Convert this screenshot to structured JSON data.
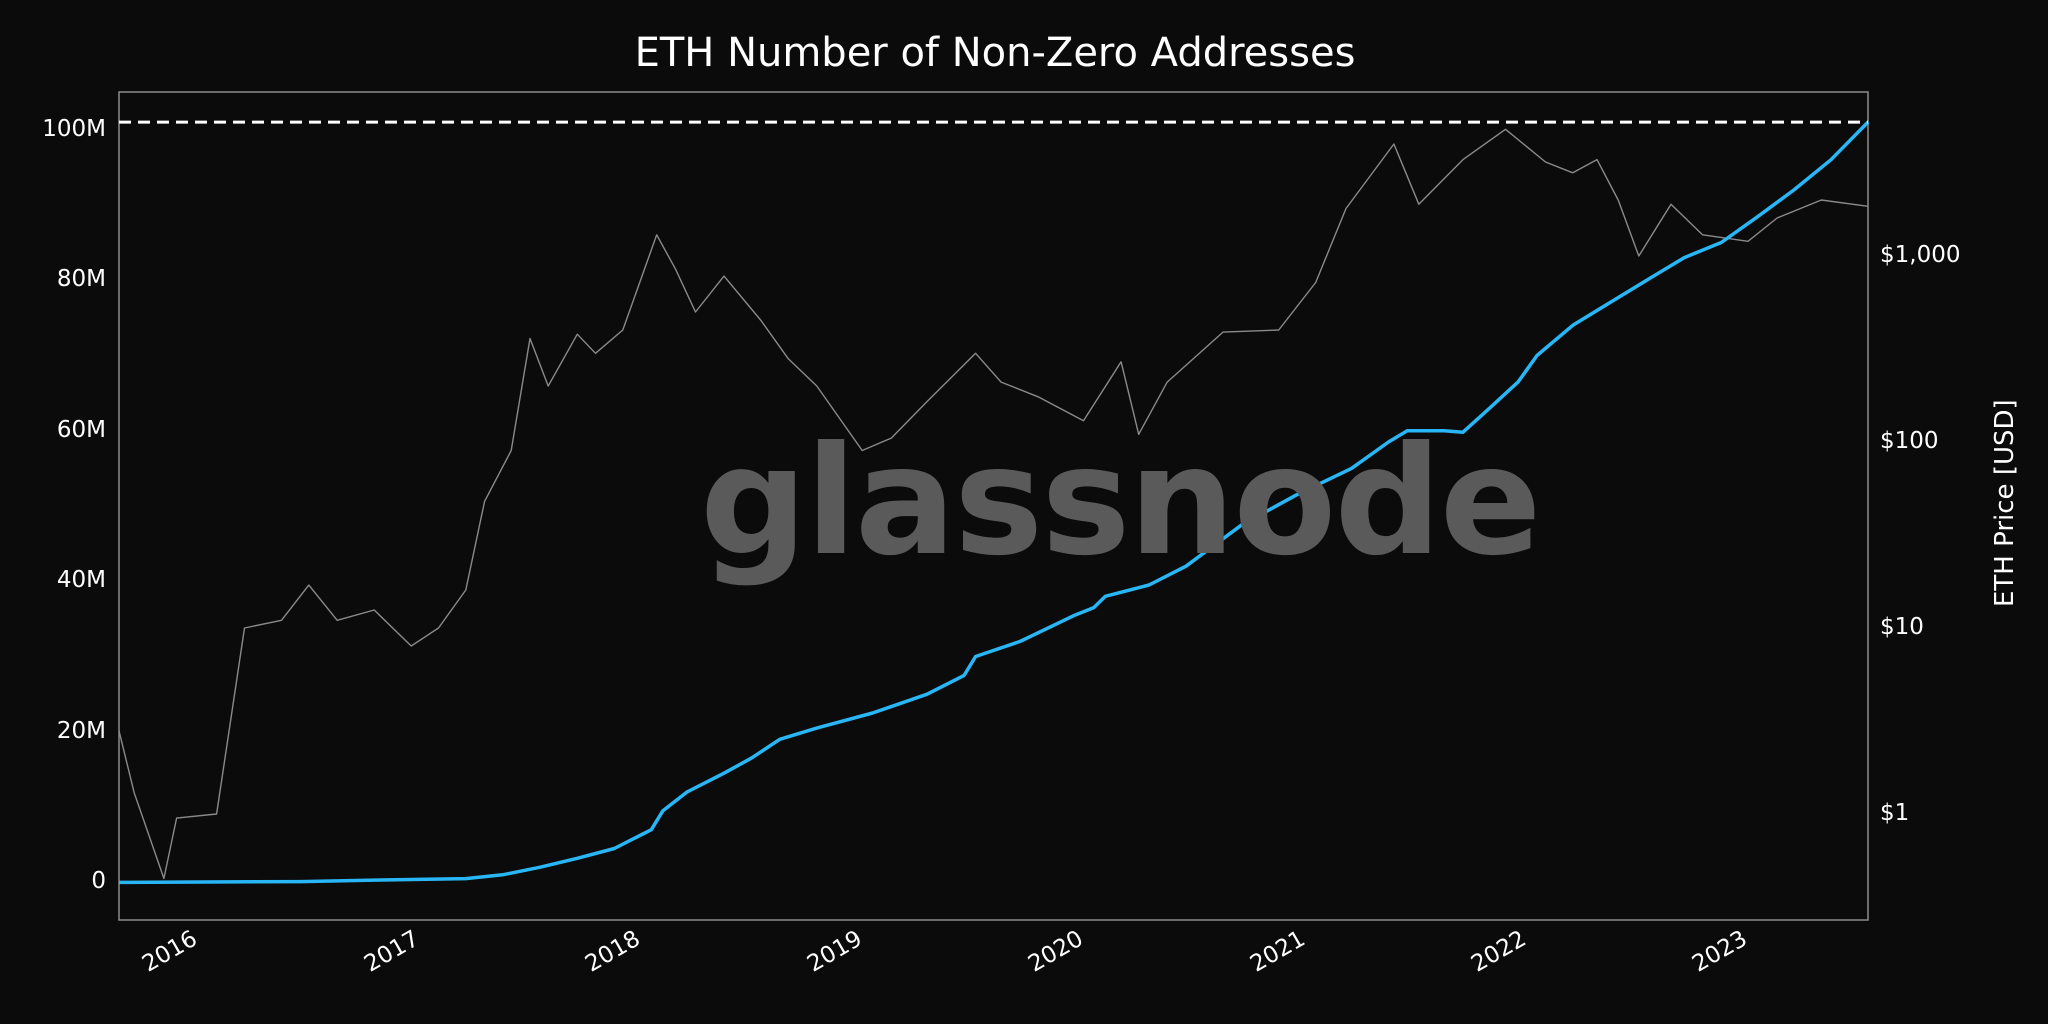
{
  "chart_data": {
    "type": "line",
    "title": "ETH Number of Non-Zero Addresses",
    "watermark": "glassnode",
    "x_tick_labels": [
      "2016",
      "2017",
      "2018",
      "2019",
      "2020",
      "2021",
      "2022",
      "2023"
    ],
    "y_left": {
      "ylim": [
        -5000000,
        105000000
      ],
      "tick_values": [
        0,
        20000000,
        40000000,
        60000000,
        80000000,
        100000000
      ],
      "tick_labels": [
        "0",
        "20M",
        "40M",
        "60M",
        "80M",
        "100M"
      ]
    },
    "y_right": {
      "ylabel": "ETH Price [USD]",
      "scale": "log",
      "tick_values": [
        1,
        10,
        100,
        1000
      ],
      "tick_labels": [
        "$1",
        "$10",
        "$100",
        "$1,000"
      ]
    },
    "xlim": [
      "2015-08-07",
      "2023-07-01"
    ],
    "ath_line": 101000000,
    "series": [
      {
        "color": "#29b6f6",
        "axis": "left",
        "points": [
          [
            "2015-08-07",
            0
          ],
          [
            "2016-06-01",
            100000
          ],
          [
            "2016-10-01",
            300000
          ],
          [
            "2017-03-01",
            500000
          ],
          [
            "2017-05-01",
            1000000
          ],
          [
            "2017-07-01",
            2000000
          ],
          [
            "2017-09-01",
            3200000
          ],
          [
            "2017-11-01",
            4500000
          ],
          [
            "2018-01-01",
            7000000
          ],
          [
            "2018-01-20",
            9500000
          ],
          [
            "2018-03-01",
            12000000
          ],
          [
            "2018-05-01",
            14500000
          ],
          [
            "2018-06-15",
            16500000
          ],
          [
            "2018-08-01",
            19000000
          ],
          [
            "2018-10-01",
            20500000
          ],
          [
            "2019-01-01",
            22500000
          ],
          [
            "2019-04-01",
            25000000
          ],
          [
            "2019-06-01",
            27500000
          ],
          [
            "2019-06-20",
            30000000
          ],
          [
            "2019-09-01",
            32000000
          ],
          [
            "2019-12-01",
            35500000
          ],
          [
            "2020-01-01",
            36500000
          ],
          [
            "2020-01-20",
            38000000
          ],
          [
            "2020-04-01",
            39500000
          ],
          [
            "2020-06-01",
            42000000
          ],
          [
            "2020-09-01",
            47500000
          ],
          [
            "2020-12-01",
            51500000
          ],
          [
            "2021-03-01",
            55000000
          ],
          [
            "2021-05-01",
            58500000
          ],
          [
            "2021-06-01",
            60000000
          ],
          [
            "2021-08-01",
            60000000
          ],
          [
            "2021-09-01",
            59800000
          ],
          [
            "2021-10-15",
            63000000
          ],
          [
            "2021-12-01",
            66500000
          ],
          [
            "2022-01-01",
            70000000
          ],
          [
            "2022-03-01",
            74000000
          ],
          [
            "2022-05-01",
            77000000
          ],
          [
            "2022-07-01",
            80000000
          ],
          [
            "2022-09-01",
            83000000
          ],
          [
            "2022-11-01",
            85000000
          ],
          [
            "2023-01-01",
            88500000
          ],
          [
            "2023-03-01",
            92000000
          ],
          [
            "2023-05-01",
            96000000
          ],
          [
            "2023-07-01",
            101000000
          ]
        ]
      },
      {
        "color": "#8a8a8a",
        "axis": "right",
        "points": [
          [
            "2015-08-07",
            2.8
          ],
          [
            "2015-09-01",
            1.3
          ],
          [
            "2015-10-20",
            0.45
          ],
          [
            "2015-11-10",
            0.95
          ],
          [
            "2016-01-15",
            1.0
          ],
          [
            "2016-03-01",
            10
          ],
          [
            "2016-05-01",
            11
          ],
          [
            "2016-06-15",
            17
          ],
          [
            "2016-08-01",
            11
          ],
          [
            "2016-10-01",
            12.5
          ],
          [
            "2016-12-01",
            8
          ],
          [
            "2017-01-15",
            10
          ],
          [
            "2017-03-01",
            16
          ],
          [
            "2017-04-01",
            48
          ],
          [
            "2017-05-15",
            90
          ],
          [
            "2017-06-15",
            360
          ],
          [
            "2017-07-15",
            200
          ],
          [
            "2017-09-01",
            380
          ],
          [
            "2017-10-01",
            300
          ],
          [
            "2017-11-15",
            400
          ],
          [
            "2018-01-10",
            1300
          ],
          [
            "2018-02-10",
            850
          ],
          [
            "2018-03-15",
            500
          ],
          [
            "2018-05-01",
            780
          ],
          [
            "2018-07-01",
            450
          ],
          [
            "2018-08-15",
            280
          ],
          [
            "2018-10-01",
            200
          ],
          [
            "2018-12-15",
            90
          ],
          [
            "2019-02-01",
            105
          ],
          [
            "2019-04-01",
            165
          ],
          [
            "2019-06-20",
            300
          ],
          [
            "2019-08-01",
            210
          ],
          [
            "2019-10-01",
            175
          ],
          [
            "2019-12-15",
            130
          ],
          [
            "2020-02-15",
            270
          ],
          [
            "2020-03-15",
            110
          ],
          [
            "2020-05-01",
            210
          ],
          [
            "2020-08-01",
            390
          ],
          [
            "2020-11-01",
            400
          ],
          [
            "2021-01-01",
            720
          ],
          [
            "2021-02-20",
            1800
          ],
          [
            "2021-05-10",
            4000
          ],
          [
            "2021-06-20",
            1900
          ],
          [
            "2021-09-01",
            3300
          ],
          [
            "2021-11-10",
            4800
          ],
          [
            "2022-01-15",
            3200
          ],
          [
            "2022-03-01",
            2800
          ],
          [
            "2022-04-10",
            3300
          ],
          [
            "2022-05-15",
            2000
          ],
          [
            "2022-06-18",
            1000
          ],
          [
            "2022-08-10",
            1900
          ],
          [
            "2022-10-01",
            1300
          ],
          [
            "2022-12-15",
            1200
          ],
          [
            "2023-02-01",
            1600
          ],
          [
            "2023-04-15",
            2000
          ],
          [
            "2023-07-01",
            1850
          ]
        ]
      }
    ]
  }
}
